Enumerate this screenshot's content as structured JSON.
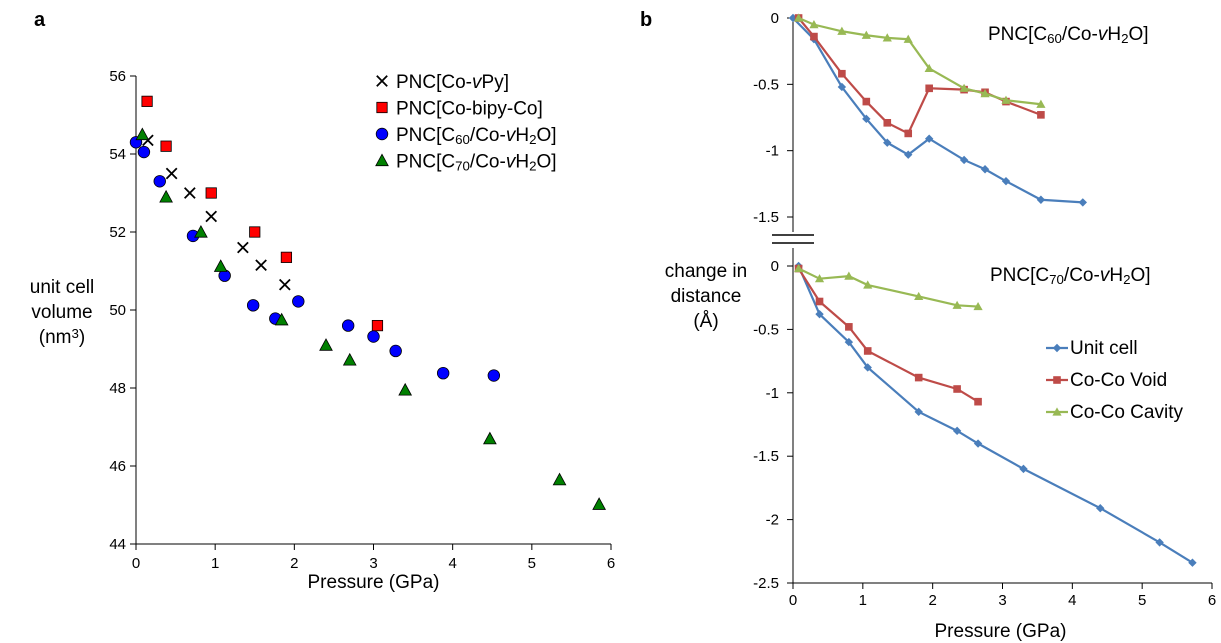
{
  "panels": {
    "a": "a",
    "b": "b"
  },
  "chart_data": [
    {
      "type": "scatter",
      "panel": "a",
      "xlabel": "Pressure (GPa)",
      "ylabel_lines": [
        "unit cell",
        "volume",
        "(nm",
        "3",
        ")"
      ],
      "xlim": [
        0,
        6
      ],
      "ylim": [
        44,
        56
      ],
      "xticks": [
        0,
        1,
        2,
        3,
        4,
        5,
        6
      ],
      "yticks": [
        44,
        46,
        48,
        50,
        52,
        54,
        56
      ],
      "legend_position": "top-right",
      "series": [
        {
          "name": "PNC[Co-vPy]",
          "legend_parts": [
            "PNC[Co-",
            "v",
            "Py]"
          ],
          "marker": "x",
          "color": "#000000",
          "x": [
            0.15,
            0.45,
            0.68,
            0.95,
            1.35,
            1.58,
            1.88
          ],
          "y": [
            54.35,
            53.5,
            53.0,
            52.4,
            51.6,
            51.15,
            50.65
          ]
        },
        {
          "name": "PNC[Co-bipy-Co]",
          "legend_parts": [
            "PNC[Co-bipy-Co]"
          ],
          "marker": "square",
          "color": "#ff0000",
          "x": [
            0.14,
            0.38,
            0.95,
            1.5,
            1.9,
            3.05
          ],
          "y": [
            55.35,
            54.2,
            53.0,
            52.0,
            51.35,
            49.6
          ]
        },
        {
          "name": "PNC[C60/Co-vH2O]",
          "legend_parts": [
            "PNC[C",
            "60",
            "/Co-",
            "v",
            "H",
            "2",
            "O]"
          ],
          "marker": "circle",
          "color": "#0000ff",
          "x": [
            0.0,
            0.1,
            0.3,
            0.72,
            1.12,
            1.48,
            1.76,
            2.05,
            2.68,
            3.0,
            3.28,
            3.88,
            4.52
          ],
          "y": [
            54.3,
            54.05,
            53.3,
            51.9,
            50.88,
            50.12,
            49.78,
            50.22,
            49.6,
            49.32,
            48.95,
            48.38,
            48.32
          ]
        },
        {
          "name": "PNC[C70/Co-vH2O]",
          "legend_parts": [
            "PNC[C",
            "70",
            "/Co-",
            "v",
            "H",
            "2",
            "O]"
          ],
          "marker": "triangle",
          "color": "#008000",
          "x": [
            0.08,
            0.38,
            0.82,
            1.07,
            1.84,
            2.4,
            2.7,
            3.4,
            4.47,
            5.35,
            5.85
          ],
          "y": [
            54.5,
            52.9,
            52.0,
            51.12,
            49.75,
            49.1,
            48.72,
            47.95,
            46.7,
            45.65,
            45.02
          ]
        }
      ]
    },
    {
      "type": "line",
      "panel": "b-top",
      "title_parts": [
        "PNC[C",
        "60",
        "/Co-",
        "v",
        "H",
        "2",
        "O]"
      ],
      "xlim": [
        0,
        6
      ],
      "ylim": [
        -1.5,
        0
      ],
      "yticks": [
        0,
        -0.5,
        -1,
        -1.5
      ],
      "series": [
        {
          "name": "Unit cell",
          "color": "#4a7ebb",
          "x": [
            0.0,
            0.3,
            0.7,
            1.05,
            1.35,
            1.65,
            1.95,
            2.45,
            2.75,
            3.05,
            3.55,
            4.15
          ],
          "y": [
            0.0,
            -0.16,
            -0.52,
            -0.76,
            -0.94,
            -1.03,
            -0.91,
            -1.07,
            -1.14,
            -1.23,
            -1.37,
            -1.39
          ]
        },
        {
          "name": "Co-Co Void",
          "color": "#be4b48",
          "x": [
            0.08,
            0.3,
            0.7,
            1.05,
            1.35,
            1.65,
            1.95,
            2.45,
            2.75,
            3.05,
            3.55
          ],
          "y": [
            0.0,
            -0.14,
            -0.42,
            -0.63,
            -0.79,
            -0.87,
            -0.53,
            -0.54,
            -0.56,
            -0.63,
            -0.73
          ]
        },
        {
          "name": "Co-Co Cavity",
          "color": "#98b954",
          "x": [
            0.08,
            0.3,
            0.7,
            1.05,
            1.35,
            1.65,
            1.95,
            2.45,
            2.75,
            3.05,
            3.55
          ],
          "y": [
            0.0,
            -0.05,
            -0.1,
            -0.13,
            -0.15,
            -0.16,
            -0.38,
            -0.53,
            -0.57,
            -0.62,
            -0.65
          ]
        }
      ]
    },
    {
      "type": "line",
      "panel": "b-bottom",
      "title_parts": [
        "PNC[C",
        "70",
        "/Co-",
        "v",
        "H",
        "2",
        "O]"
      ],
      "xlabel": "Pressure (GPa)",
      "ylabel_lines": [
        "change in",
        "distance",
        "(Å)"
      ],
      "xlim": [
        0,
        6
      ],
      "ylim": [
        -2.5,
        0
      ],
      "xticks": [
        0,
        1,
        2,
        3,
        4,
        5,
        6
      ],
      "yticks": [
        0,
        -0.5,
        -1,
        -1.5,
        -2,
        -2.5
      ],
      "legend_position": "right",
      "series": [
        {
          "name": "Unit cell",
          "color": "#4a7ebb",
          "x": [
            0.08,
            0.38,
            0.8,
            1.07,
            1.8,
            2.35,
            2.65,
            3.3,
            4.4,
            5.25,
            5.72
          ],
          "y": [
            0.0,
            -0.38,
            -0.6,
            -0.8,
            -1.15,
            -1.3,
            -1.4,
            -1.6,
            -1.91,
            -2.18,
            -2.34
          ]
        },
        {
          "name": "Co-Co Void",
          "color": "#be4b48",
          "x": [
            0.08,
            0.38,
            0.8,
            1.07,
            1.8,
            2.35,
            2.65
          ],
          "y": [
            -0.02,
            -0.28,
            -0.48,
            -0.67,
            -0.88,
            -0.97,
            -1.07
          ]
        },
        {
          "name": "Co-Co Cavity",
          "color": "#98b954",
          "x": [
            0.08,
            0.38,
            0.8,
            1.07,
            1.8,
            2.35,
            2.65
          ],
          "y": [
            -0.02,
            -0.1,
            -0.08,
            -0.15,
            -0.24,
            -0.31,
            -0.32
          ]
        }
      ]
    }
  ]
}
